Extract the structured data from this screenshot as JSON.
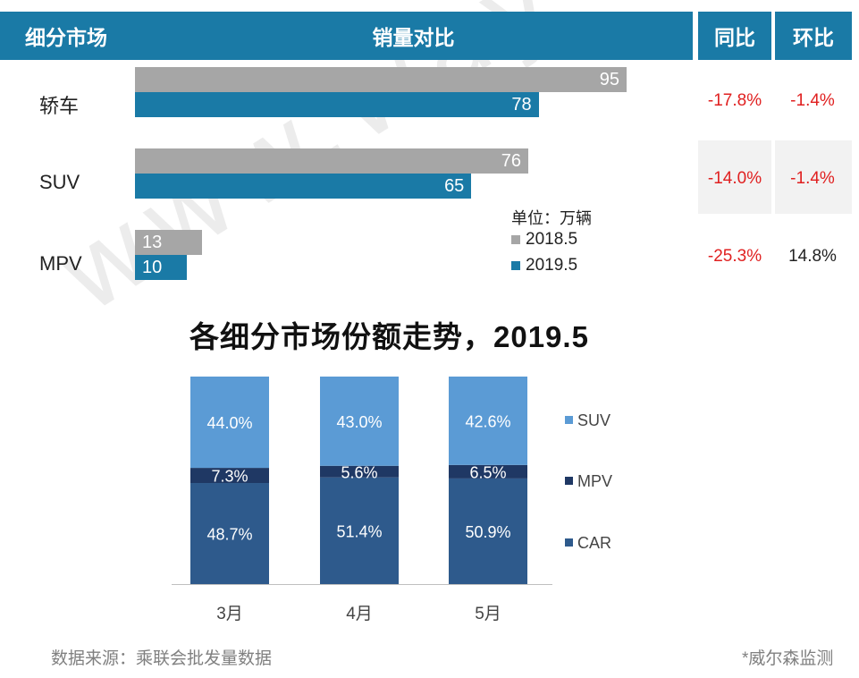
{
  "header": {
    "segment": "细分市场",
    "sales_compare": "销量对比",
    "yoy": "同比",
    "mom": "环比"
  },
  "unit_legend": {
    "unit": "单位：万辆",
    "series_2018": "2018.5",
    "series_2019": "2019.5"
  },
  "colors": {
    "header_blue": "#1a7aa6",
    "bar_gray": "#a6a6a6",
    "suv": "#5b9bd5",
    "mpv": "#1f3864",
    "car": "#2e5a8c",
    "negative": "#e02020"
  },
  "watermark": "www.way-s.cn",
  "footer": {
    "source": "数据来源：乘联会批发量数据",
    "monitor": "*威尔森监测"
  },
  "chart_data": [
    {
      "type": "bar",
      "orientation": "horizontal",
      "categories": [
        "轿车",
        "SUV",
        "MPV"
      ],
      "series": [
        {
          "name": "2018.5",
          "values": [
            95,
            76,
            13
          ]
        },
        {
          "name": "2019.5",
          "values": [
            78,
            65,
            10
          ]
        }
      ],
      "yoy": [
        "-17.8%",
        "-14.0%",
        "-25.3%"
      ],
      "mom": [
        "-1.4%",
        "-1.4%",
        "14.8%"
      ],
      "unit": "单位：万辆"
    },
    {
      "type": "bar",
      "stacked": true,
      "title": "各细分市场份额走势，2019.5",
      "categories": [
        "3月",
        "4月",
        "5月"
      ],
      "series": [
        {
          "name": "CAR",
          "values": [
            48.7,
            51.4,
            50.9
          ],
          "labels": [
            "48.7%",
            "51.4%",
            "50.9%"
          ]
        },
        {
          "name": "MPV",
          "values": [
            7.3,
            5.6,
            6.5
          ],
          "labels": [
            "7.3%",
            "5.6%",
            "6.5%"
          ]
        },
        {
          "name": "SUV",
          "values": [
            44.0,
            43.0,
            42.6
          ],
          "labels": [
            "44.0%",
            "43.0%",
            "42.6%"
          ]
        }
      ],
      "legend": [
        "SUV",
        "MPV",
        "CAR"
      ],
      "legend_position": "right",
      "ylim": [
        0,
        100
      ]
    }
  ]
}
